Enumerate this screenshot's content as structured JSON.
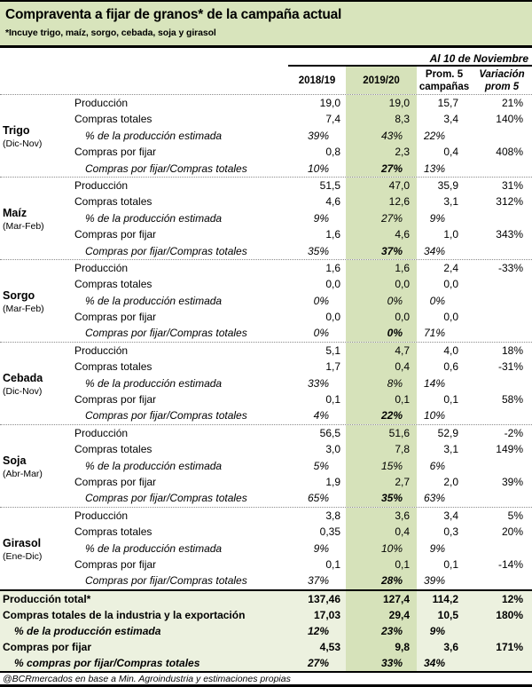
{
  "colors": {
    "header_green": "#d8e4bc",
    "column_green": "#d6e2ba",
    "totals_bg": "#ecf1df"
  },
  "chart_data": {
    "type": "table",
    "title": "Compraventa a fijar de granos* de la campaña actual",
    "subtitle": "*Incuye trigo, maíz, sorgo, cebada, soja y girasol",
    "as_of": "Al 10 de Noviembre",
    "columns": [
      {
        "l1": "2018/19",
        "l2": ""
      },
      {
        "l1": "2019/20",
        "l2": ""
      },
      {
        "l1": "Prom. 5",
        "l2": "campañas"
      },
      {
        "l1": "Variación",
        "l2": "prom 5"
      }
    ],
    "sections": [
      {
        "grain": "Trigo",
        "period": "(Dic-Nov)",
        "rows": [
          {
            "label": "Producción",
            "values": [
              "19,0",
              "19,0",
              "15,7",
              "21%"
            ],
            "italic": false,
            "strong_col2": false
          },
          {
            "label": "Compras totales",
            "values": [
              "7,4",
              "8,3",
              "3,4",
              "140%"
            ],
            "italic": false,
            "strong_col2": false
          },
          {
            "label": "% de la producción estimada",
            "values": [
              "39%",
              "43%",
              "22%",
              ""
            ],
            "italic": true,
            "strong_col2": false
          },
          {
            "label": "Compras por fijar",
            "values": [
              "0,8",
              "2,3",
              "0,4",
              "408%"
            ],
            "italic": false,
            "strong_col2": false
          },
          {
            "label": "Compras por fijar/Compras totales",
            "values": [
              "10%",
              "27%",
              "13%",
              ""
            ],
            "italic": true,
            "strong_col2": true
          }
        ]
      },
      {
        "grain": "Maíz",
        "period": "(Mar-Feb)",
        "rows": [
          {
            "label": "Producción",
            "values": [
              "51,5",
              "47,0",
              "35,9",
              "31%"
            ],
            "italic": false,
            "strong_col2": false
          },
          {
            "label": "Compras totales",
            "values": [
              "4,6",
              "12,6",
              "3,1",
              "312%"
            ],
            "italic": false,
            "strong_col2": false
          },
          {
            "label": "% de la producción estimada",
            "values": [
              "9%",
              "27%",
              "9%",
              ""
            ],
            "italic": true,
            "strong_col2": false
          },
          {
            "label": "Compras por fijar",
            "values": [
              "1,6",
              "4,6",
              "1,0",
              "343%"
            ],
            "italic": false,
            "strong_col2": false
          },
          {
            "label": "Compras por fijar/Compras totales",
            "values": [
              "35%",
              "37%",
              "34%",
              ""
            ],
            "italic": true,
            "strong_col2": true
          }
        ]
      },
      {
        "grain": "Sorgo",
        "period": "(Mar-Feb)",
        "rows": [
          {
            "label": "Producción",
            "values": [
              "1,6",
              "1,6",
              "2,4",
              "-33%"
            ],
            "italic": false,
            "strong_col2": false
          },
          {
            "label": "Compras totales",
            "values": [
              "0,0",
              "0,0",
              "0,0",
              ""
            ],
            "italic": false,
            "strong_col2": false
          },
          {
            "label": "% de la producción estimada",
            "values": [
              "0%",
              "0%",
              "0%",
              ""
            ],
            "italic": true,
            "strong_col2": false
          },
          {
            "label": "Compras por fijar",
            "values": [
              "0,0",
              "0,0",
              "0,0",
              ""
            ],
            "italic": false,
            "strong_col2": false
          },
          {
            "label": "Compras por fijar/Compras totales",
            "values": [
              "0%",
              "0%",
              "71%",
              ""
            ],
            "italic": true,
            "strong_col2": true
          }
        ]
      },
      {
        "grain": "Cebada",
        "period": "(Dic-Nov)",
        "rows": [
          {
            "label": "Producción",
            "values": [
              "5,1",
              "4,7",
              "4,0",
              "18%"
            ],
            "italic": false,
            "strong_col2": false
          },
          {
            "label": "Compras totales",
            "values": [
              "1,7",
              "0,4",
              "0,6",
              "-31%"
            ],
            "italic": false,
            "strong_col2": false
          },
          {
            "label": "% de la producción estimada",
            "values": [
              "33%",
              "8%",
              "14%",
              ""
            ],
            "italic": true,
            "strong_col2": false
          },
          {
            "label": "Compras por fijar",
            "values": [
              "0,1",
              "0,1",
              "0,1",
              "58%"
            ],
            "italic": false,
            "strong_col2": false
          },
          {
            "label": "Compras por fijar/Compras totales",
            "values": [
              "4%",
              "22%",
              "10%",
              ""
            ],
            "italic": true,
            "strong_col2": true
          }
        ]
      },
      {
        "grain": "Soja",
        "period": "(Abr-Mar)",
        "rows": [
          {
            "label": "Producción",
            "values": [
              "56,5",
              "51,6",
              "52,9",
              "-2%"
            ],
            "italic": false,
            "strong_col2": false
          },
          {
            "label": "Compras totales",
            "values": [
              "3,0",
              "7,8",
              "3,1",
              "149%"
            ],
            "italic": false,
            "strong_col2": false
          },
          {
            "label": "% de la producción estimada",
            "values": [
              "5%",
              "15%",
              "6%",
              ""
            ],
            "italic": true,
            "strong_col2": false
          },
          {
            "label": "Compras por fijar",
            "values": [
              "1,9",
              "2,7",
              "2,0",
              "39%"
            ],
            "italic": false,
            "strong_col2": false
          },
          {
            "label": "Compras por fijar/Compras totales",
            "values": [
              "65%",
              "35%",
              "63%",
              ""
            ],
            "italic": true,
            "strong_col2": true
          }
        ]
      },
      {
        "grain": "Girasol",
        "period": "(Ene-Dic)",
        "rows": [
          {
            "label": "Producción",
            "values": [
              "3,8",
              "3,6",
              "3,4",
              "5%"
            ],
            "italic": false,
            "strong_col2": false
          },
          {
            "label": "Compras totales",
            "values": [
              "0,35",
              "0,4",
              "0,3",
              "20%"
            ],
            "italic": false,
            "strong_col2": false
          },
          {
            "label": "% de la producción estimada",
            "values": [
              "9%",
              "10%",
              "9%",
              ""
            ],
            "italic": true,
            "strong_col2": false
          },
          {
            "label": "Compras por fijar",
            "values": [
              "0,1",
              "0,1",
              "0,1",
              "-14%"
            ],
            "italic": false,
            "strong_col2": false
          },
          {
            "label": "Compras por fijar/Compras totales",
            "values": [
              "37%",
              "28%",
              "39%",
              ""
            ],
            "italic": true,
            "strong_col2": true
          }
        ]
      }
    ],
    "totals": [
      {
        "label": "Producción total*",
        "values": [
          "137,46",
          "127,4",
          "114,2",
          "12%"
        ],
        "italic": false,
        "strong_col2": false
      },
      {
        "label": "Compras totales de la industria y la exportación",
        "values": [
          "17,03",
          "29,4",
          "10,5",
          "180%"
        ],
        "italic": false,
        "strong_col2": false
      },
      {
        "label": "% de la producción estimada",
        "values": [
          "12%",
          "23%",
          "9%",
          ""
        ],
        "italic": true,
        "strong_col2": false
      },
      {
        "label": "Compras por fijar",
        "values": [
          "4,53",
          "9,8",
          "3,6",
          "171%"
        ],
        "italic": false,
        "strong_col2": false
      },
      {
        "label": "% compras por fijar/Compras totales",
        "values": [
          "27%",
          "33%",
          "34%",
          ""
        ],
        "italic": true,
        "strong_col2": false
      }
    ],
    "footer": "@BCRmercados en base a Min. Agroindustria y estimaciones propias"
  }
}
